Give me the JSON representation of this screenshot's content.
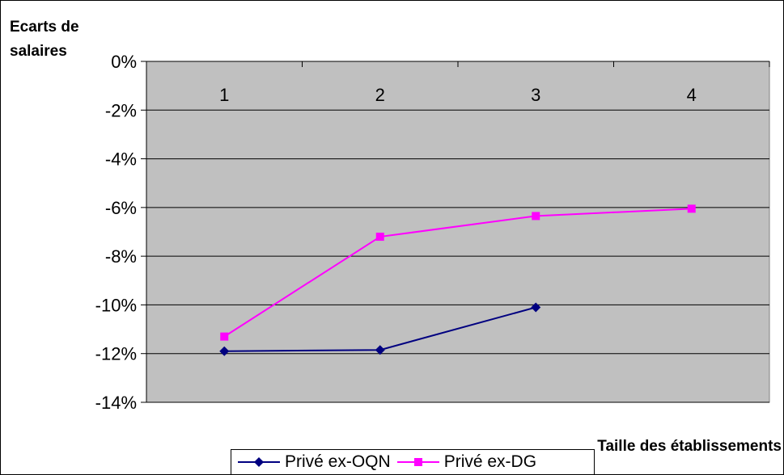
{
  "chart_data": {
    "type": "line",
    "categories": [
      "1",
      "2",
      "3",
      "4"
    ],
    "series": [
      {
        "name": "Privé ex-OQN",
        "values": [
          -11.9,
          -11.85,
          -10.1,
          null
        ],
        "color": "#000080",
        "marker": "diamond"
      },
      {
        "name": "Privé ex-DG",
        "values": [
          -11.3,
          -7.2,
          -6.35,
          -6.05
        ],
        "color": "#ff00ff",
        "marker": "square"
      }
    ],
    "ylabel": [
      "Ecarts de",
      "salaires"
    ],
    "xlabel": "Taille des établissements",
    "ylim": [
      -14,
      0
    ],
    "ytick_step": 2,
    "ytick_suffix": "%",
    "x_tick_labels_position": "top",
    "plot_background": "#c0c0c0",
    "grid": true,
    "legend_position": "bottom"
  }
}
